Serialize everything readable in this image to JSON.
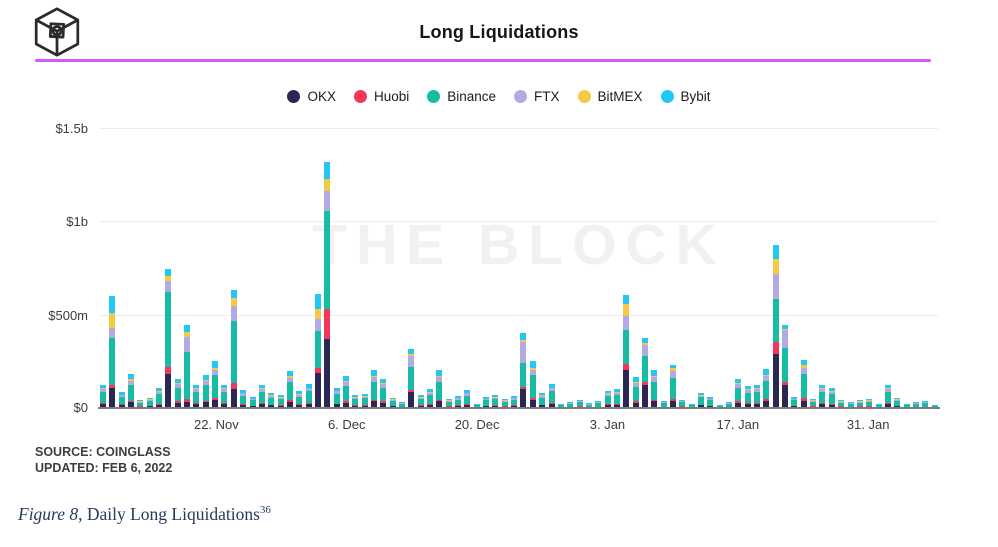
{
  "header": {
    "title": "Long Liquidations"
  },
  "accent": {
    "divider_color": "#d15df0"
  },
  "legend": [
    {
      "label": "OKX",
      "color": "#2b2755"
    },
    {
      "label": "Huobi",
      "color": "#f5365c"
    },
    {
      "label": "Binance",
      "color": "#16bca4"
    },
    {
      "label": "FTX",
      "color": "#b1aae4"
    },
    {
      "label": "BitMEX",
      "color": "#f6c944"
    },
    {
      "label": "Bybit",
      "color": "#22c8f5"
    }
  ],
  "chart_data": {
    "type": "bar",
    "stacked": true,
    "title": "Long Liquidations",
    "watermark": "THE BLOCK",
    "unit": "USD millions",
    "ylim_millions": [
      0,
      1500
    ],
    "yticks": {
      "t0": "$1.5b",
      "t1": "$1b",
      "t2": "$500m",
      "t3": "$0"
    },
    "ytick_values_millions": [
      1500,
      1000,
      500,
      0
    ],
    "grid": "horizontal",
    "legend_position": "top-center",
    "xticklabels": {
      "x0": "22. Nov",
      "x1": "6. Dec",
      "x2": "20. Dec",
      "x3": "3. Jan",
      "x4": "17. Jan",
      "x5": "31. Jan"
    },
    "tick_bar_indices": [
      12,
      26,
      40,
      54,
      68,
      82
    ],
    "series_names": [
      "OKX",
      "Huobi",
      "Binance",
      "FTX",
      "BitMEX",
      "Bybit"
    ],
    "series_colors": [
      "#2b2755",
      "#f5365c",
      "#16bca4",
      "#b1aae4",
      "#f6c944",
      "#22c8f5"
    ],
    "bars_millions": [
      [
        21,
        6,
        58,
        15,
        5,
        19
      ],
      [
        105,
        18,
        250,
        54,
        81,
        92
      ],
      [
        15,
        4,
        40,
        10,
        3,
        14
      ],
      [
        31,
        9,
        85,
        22,
        7,
        26
      ],
      [
        7,
        2,
        20,
        5,
        2,
        7
      ],
      [
        9,
        3,
        25,
        7,
        2,
        8
      ],
      [
        18,
        5,
        51,
        13,
        4,
        17
      ],
      [
        183,
        38,
        403,
        54,
        32,
        33
      ],
      [
        27,
        8,
        73,
        19,
        6,
        23
      ],
      [
        30,
        20,
        250,
        80,
        25,
        42
      ],
      [
        21,
        6,
        58,
        15,
        5,
        19
      ],
      [
        30,
        9,
        84,
        21,
        7,
        27
      ],
      [
        43,
        13,
        119,
        30,
        10,
        38
      ],
      [
        21,
        6,
        58,
        15,
        5,
        19
      ],
      [
        100,
        35,
        330,
        80,
        45,
        45
      ],
      [
        16,
        5,
        45,
        12,
        4,
        14
      ],
      [
        10,
        3,
        28,
        7,
        2,
        10
      ],
      [
        21,
        6,
        58,
        15,
        5,
        19
      ],
      [
        14,
        4,
        38,
        10,
        3,
        11
      ],
      [
        12,
        3,
        33,
        8,
        3,
        11
      ],
      [
        34,
        10,
        94,
        24,
        8,
        30
      ],
      [
        15,
        4,
        42,
        11,
        4,
        14
      ],
      [
        22,
        6,
        61,
        16,
        5,
        20
      ],
      [
        185,
        28,
        200,
        63,
        54,
        80
      ],
      [
        370,
        163,
        522,
        109,
        65,
        91
      ],
      [
        19,
        5,
        52,
        13,
        4,
        17
      ],
      [
        29,
        9,
        81,
        21,
        7,
        25
      ],
      [
        12,
        3,
        33,
        8,
        3,
        11
      ],
      [
        13,
        4,
        35,
        9,
        3,
        11
      ],
      [
        35,
        10,
        96,
        24,
        8,
        31
      ],
      [
        27,
        8,
        73,
        19,
        6,
        23
      ],
      [
        9,
        3,
        25,
        7,
        2,
        8
      ],
      [
        5,
        2,
        15,
        4,
        1,
        5
      ],
      [
        86,
        12,
        120,
        60,
        10,
        30
      ],
      [
        12,
        3,
        33,
        8,
        3,
        11
      ],
      [
        17,
        5,
        48,
        12,
        4,
        16
      ],
      [
        35,
        10,
        96,
        24,
        8,
        31
      ],
      [
        8,
        2,
        23,
        6,
        2,
        7
      ],
      [
        11,
        3,
        30,
        8,
        2,
        10
      ],
      [
        16,
        5,
        46,
        12,
        4,
        14
      ],
      [
        4,
        1,
        10,
        2,
        1,
        3
      ],
      [
        10,
        3,
        28,
        7,
        2,
        9
      ],
      [
        12,
        3,
        33,
        8,
        3,
        11
      ],
      [
        8,
        2,
        23,
        6,
        2,
        7
      ],
      [
        11,
        3,
        30,
        8,
        2,
        10
      ],
      [
        104,
        10,
        125,
        117,
        6,
        38
      ],
      [
        43,
        13,
        119,
        30,
        10,
        38
      ],
      [
        14,
        4,
        38,
        10,
        3,
        11
      ],
      [
        22,
        6,
        61,
        16,
        5,
        20
      ],
      [
        4,
        1,
        10,
        2,
        1,
        3
      ],
      [
        5,
        2,
        14,
        4,
        1,
        4
      ],
      [
        8,
        2,
        21,
        5,
        2,
        7
      ],
      [
        4,
        1,
        12,
        3,
        1,
        4
      ],
      [
        6,
        2,
        18,
        5,
        1,
        6
      ],
      [
        15,
        5,
        43,
        11,
        4,
        13
      ],
      [
        17,
        5,
        48,
        12,
        4,
        16
      ],
      [
        204,
        31,
        185,
        72,
        66,
        50
      ],
      [
        28,
        8,
        78,
        20,
        7,
        24
      ],
      [
        123,
        15,
        140,
        60,
        8,
        27
      ],
      [
        35,
        10,
        96,
        25,
        8,
        31
      ],
      [
        6,
        2,
        18,
        5,
        1,
        6
      ],
      [
        40,
        10,
        110,
        40,
        12,
        20
      ],
      [
        8,
        2,
        21,
        5,
        2,
        7
      ],
      [
        4,
        1,
        10,
        2,
        1,
        3
      ],
      [
        14,
        4,
        39,
        10,
        3,
        13
      ],
      [
        10,
        3,
        28,
        7,
        2,
        10
      ],
      [
        3,
        1,
        7,
        2,
        0,
        2
      ],
      [
        5,
        2,
        14,
        4,
        1,
        4
      ],
      [
        27,
        8,
        74,
        19,
        6,
        24
      ],
      [
        20,
        6,
        55,
        14,
        5,
        18
      ],
      [
        21,
        6,
        58,
        15,
        5,
        19
      ],
      [
        36,
        11,
        99,
        25,
        8,
        31
      ],
      [
        292,
        63,
        229,
        133,
        83,
        75
      ],
      [
        122,
        18,
        179,
        99,
        5,
        22
      ],
      [
        10,
        3,
        28,
        7,
        2,
        9
      ],
      [
        40,
        12,
        130,
        35,
        15,
        26
      ],
      [
        8,
        2,
        23,
        6,
        2,
        7
      ],
      [
        21,
        6,
        58,
        15,
        5,
        19
      ],
      [
        18,
        5,
        51,
        13,
        4,
        17
      ],
      [
        7,
        2,
        20,
        5,
        2,
        7
      ],
      [
        5,
        2,
        15,
        4,
        1,
        5
      ],
      [
        7,
        2,
        20,
        5,
        2,
        7
      ],
      [
        8,
        2,
        23,
        6,
        2,
        7
      ],
      [
        4,
        1,
        10,
        2,
        1,
        3
      ],
      [
        21,
        6,
        58,
        15,
        5,
        19
      ],
      [
        9,
        3,
        25,
        7,
        2,
        8
      ],
      [
        4,
        1,
        10,
        2,
        1,
        3
      ],
      [
        5,
        2,
        14,
        4,
        1,
        4
      ],
      [
        6,
        2,
        18,
        5,
        1,
        6
      ],
      [
        3,
        1,
        7,
        2,
        0,
        2
      ]
    ]
  },
  "footer": {
    "source": "SOURCE: COINGLASS",
    "updated": "UPDATED: FEB 6, 2022"
  },
  "caption": {
    "figure": "Figure 8,",
    "text": " Daily Long Liquidations",
    "footnote": "36"
  }
}
